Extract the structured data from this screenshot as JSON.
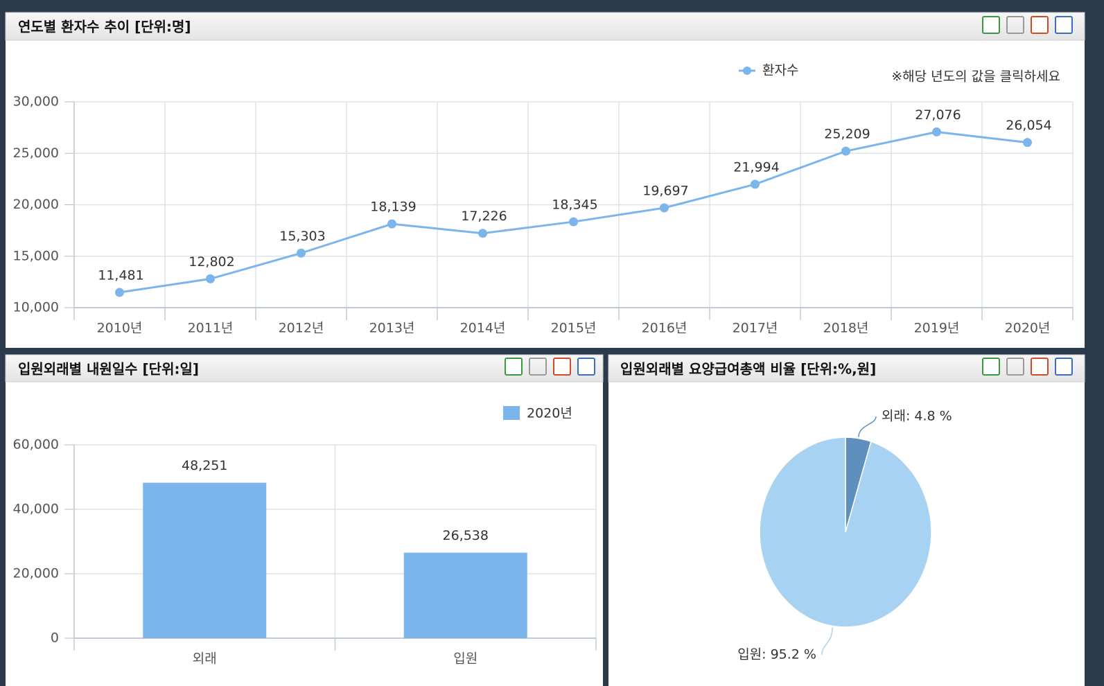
{
  "chart_data": [
    {
      "type": "line",
      "title": "연도별 환자수 추이 [단위:명]",
      "annotation": "※해당 년도의 값을 클릭하세요",
      "categories": [
        "2010년",
        "2011년",
        "2012년",
        "2013년",
        "2014년",
        "2015년",
        "2016년",
        "2017년",
        "2018년",
        "2019년",
        "2020년"
      ],
      "series": [
        {
          "name": "환자수",
          "color": "#7cb5ec",
          "values": [
            11481,
            12802,
            15303,
            18139,
            17226,
            18345,
            19697,
            21994,
            25209,
            27076,
            26054
          ],
          "value_labels": [
            "11,481",
            "12,802",
            "15,303",
            "18,139",
            "17,226",
            "18,345",
            "19,697",
            "21,994",
            "25,209",
            "27,076",
            "26,054"
          ]
        }
      ],
      "ylim": [
        10000,
        30000
      ],
      "yticks": [
        {
          "value": 10000,
          "label": "10,000"
        },
        {
          "value": 15000,
          "label": "15,000"
        },
        {
          "value": 20000,
          "label": "20,000"
        },
        {
          "value": 25000,
          "label": "25,000"
        },
        {
          "value": 30000,
          "label": "30,000"
        }
      ],
      "grid": true
    },
    {
      "type": "bar",
      "title": "입원외래별 내원일수 [단위:일]",
      "categories": [
        "외래",
        "입원"
      ],
      "series": [
        {
          "name": "2020년",
          "color": "#7cb5ec",
          "values": [
            48251,
            26538
          ],
          "value_labels": [
            "48,251",
            "26,538"
          ]
        }
      ],
      "ylim": [
        0,
        60000
      ],
      "yticks": [
        0,
        {
          "value": 20000,
          "label": "20,000"
        },
        {
          "value": 40000,
          "label": "40,000"
        },
        {
          "value": 60000,
          "label": "60,000"
        }
      ],
      "grid": true
    },
    {
      "type": "pie",
      "title": "입원외래별 요양급여총액 비율 [단위:%,원]",
      "categories": [
        "외래",
        "입원"
      ],
      "values": [
        4.8,
        95.2
      ],
      "value_labels": [
        "외래: 4.8 %",
        "입원: 95.2 %"
      ],
      "colors": [
        "#5f8fbd",
        "#a8d2f2"
      ]
    }
  ]
}
